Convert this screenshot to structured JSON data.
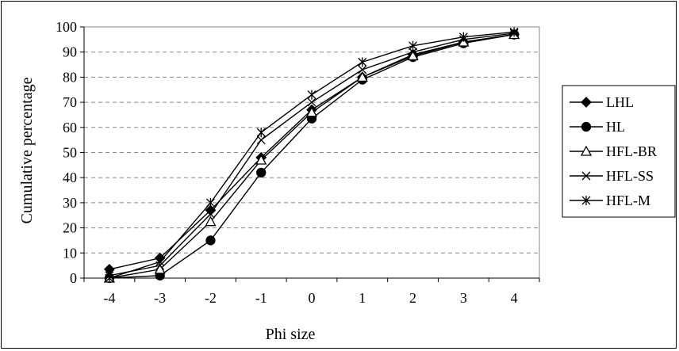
{
  "chart_data": {
    "type": "line",
    "title": "",
    "xlabel": "Phi size",
    "ylabel": "Cumulative percentage",
    "categories": [
      "-4",
      "-3",
      "-2",
      "-1",
      "0",
      "1",
      "2",
      "3",
      "4"
    ],
    "ylim": [
      0,
      100
    ],
    "yticks": [
      "0",
      "10",
      "20",
      "30",
      "40",
      "50",
      "60",
      "70",
      "80",
      "90",
      "100"
    ],
    "grid": "horizontal dashed",
    "legend_position": "right",
    "series": [
      {
        "name": "LHL",
        "marker": "diamond",
        "values": [
          3.5,
          8,
          27,
          48,
          67,
          80,
          89,
          94,
          97
        ]
      },
      {
        "name": "HL",
        "marker": "circle",
        "values": [
          0,
          1,
          15,
          42,
          63.5,
          79,
          88,
          93.5,
          97
        ]
      },
      {
        "name": "HFL-BR",
        "marker": "triangle",
        "values": [
          0,
          3.5,
          22.5,
          47,
          66,
          80,
          88.5,
          94,
          97
        ]
      },
      {
        "name": "HFL-SS",
        "marker": "x",
        "values": [
          1,
          5,
          25.5,
          55,
          70,
          83,
          90,
          95,
          97.5
        ]
      },
      {
        "name": "HFL-M",
        "marker": "asterisk",
        "values": [
          0,
          6.5,
          30,
          58,
          73,
          86,
          92.5,
          96,
          98
        ]
      }
    ]
  }
}
